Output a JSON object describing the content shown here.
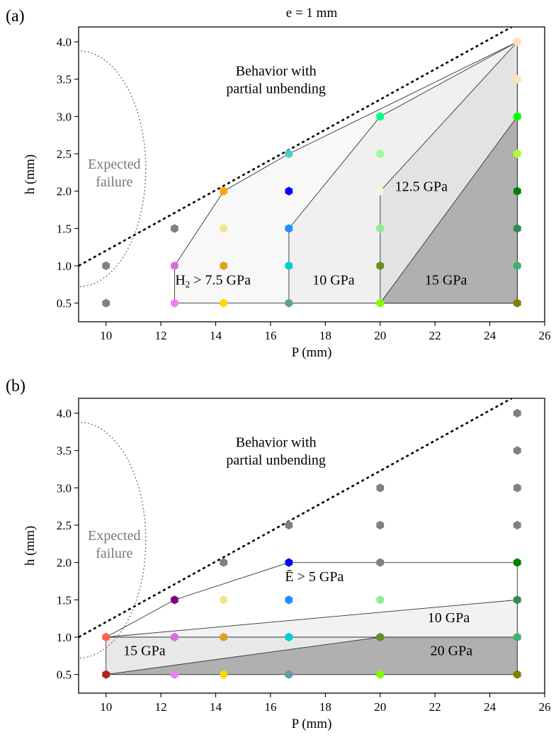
{
  "chart_data": [
    {
      "panel_label": "(a)",
      "type": "scatter",
      "title": "e = 1 mm",
      "xlabel": "P (mm)",
      "ylabel": "h (mm)",
      "xlim": [
        9,
        26
      ],
      "ylim": [
        0.25,
        4.2
      ],
      "xticks": [
        10,
        12,
        14,
        16,
        18,
        20,
        22,
        24,
        26
      ],
      "yticks": [
        0.5,
        1.0,
        1.5,
        2.0,
        2.5,
        3.0,
        3.5,
        4.0
      ],
      "xtick_labels": [
        "10",
        "12",
        "14",
        "16",
        "18",
        "20",
        "22",
        "24",
        "26"
      ],
      "ytick_labels": [
        "0.5",
        "1.0",
        "1.5",
        "2.0",
        "2.5",
        "3.0",
        "3.5",
        "4.0"
      ],
      "grid": false,
      "points": [
        {
          "x": 10,
          "y": 0.5,
          "color": "#808080"
        },
        {
          "x": 10,
          "y": 1.0,
          "color": "#808080"
        },
        {
          "x": 12.5,
          "y": 0.5,
          "color": "#ee82ee"
        },
        {
          "x": 12.5,
          "y": 1.0,
          "color": "#da70d6"
        },
        {
          "x": 12.5,
          "y": 1.5,
          "color": "#808080"
        },
        {
          "x": 14.29,
          "y": 0.5,
          "color": "#ffd700"
        },
        {
          "x": 14.29,
          "y": 1.0,
          "color": "#daa520"
        },
        {
          "x": 14.29,
          "y": 1.5,
          "color": "#f0e68c"
        },
        {
          "x": 14.29,
          "y": 2.0,
          "color": "#ffa500"
        },
        {
          "x": 16.67,
          "y": 0.5,
          "color": "#5f9ea0"
        },
        {
          "x": 16.67,
          "y": 1.0,
          "color": "#00ced1"
        },
        {
          "x": 16.67,
          "y": 1.5,
          "color": "#1e90ff"
        },
        {
          "x": 16.67,
          "y": 2.0,
          "color": "#0000ff"
        },
        {
          "x": 16.67,
          "y": 2.5,
          "color": "#48d1cc"
        },
        {
          "x": 20,
          "y": 0.5,
          "color": "#7fff00"
        },
        {
          "x": 20,
          "y": 1.0,
          "color": "#6b8e23"
        },
        {
          "x": 20,
          "y": 1.5,
          "color": "#90ee90"
        },
        {
          "x": 20,
          "y": 2.0,
          "color": "#f5f5dc"
        },
        {
          "x": 20,
          "y": 2.5,
          "color": "#98fb98"
        },
        {
          "x": 20,
          "y": 3.0,
          "color": "#00ff7f"
        },
        {
          "x": 25,
          "y": 0.5,
          "color": "#808000"
        },
        {
          "x": 25,
          "y": 1.0,
          "color": "#3cb371"
        },
        {
          "x": 25,
          "y": 1.5,
          "color": "#2e8b57"
        },
        {
          "x": 25,
          "y": 2.0,
          "color": "#008000"
        },
        {
          "x": 25,
          "y": 2.5,
          "color": "#adff2f"
        },
        {
          "x": 25,
          "y": 3.0,
          "color": "#00ff00"
        },
        {
          "x": 25,
          "y": 3.5,
          "color": "#ffe4b5"
        },
        {
          "x": 25,
          "y": 4.0,
          "color": "#ffdead"
        }
      ],
      "regions": [
        {
          "label": "H₂ > 7.5 GPa",
          "label_at": [
            13.9,
            0.75
          ],
          "fill": "#f8f8f8",
          "polygon": [
            [
              12.5,
              0.5
            ],
            [
              12.5,
              1.0
            ],
            [
              14.29,
              2.0
            ],
            [
              16.67,
              2.5
            ],
            [
              25,
              4.0
            ],
            [
              25,
              0.5
            ]
          ]
        },
        {
          "label": "10 GPa",
          "label_at": [
            18.3,
            0.75
          ],
          "fill": "#f0f0f0",
          "polygon": [
            [
              16.67,
              0.5
            ],
            [
              16.67,
              1.5
            ],
            [
              20,
              3.0
            ],
            [
              25,
              4.0
            ],
            [
              25,
              0.5
            ]
          ]
        },
        {
          "label": "12.5 GPa",
          "label_at": [
            21.5,
            2.0
          ],
          "fill": "#e3e3e3",
          "polygon": [
            [
              20,
              0.5
            ],
            [
              20,
              2.0
            ],
            [
              25,
              4.0
            ],
            [
              25,
              0.5
            ]
          ]
        },
        {
          "label": "15 GPa",
          "label_at": [
            22.4,
            0.75
          ],
          "fill": "#b0b0b0",
          "polygon": [
            [
              20,
              0.5
            ],
            [
              25,
              3.0
            ],
            [
              25,
              0.5
            ]
          ]
        }
      ],
      "boundary_line": {
        "label": "Behavior with\npartial unbending",
        "label_at": [
          16.2,
          3.55
        ],
        "from": [
          9,
          1.0
        ],
        "to": [
          24.8,
          4.2
        ]
      },
      "failure_curve": {
        "label": "Expected\nfailure",
        "label_at": [
          10.3,
          2.3
        ],
        "center": [
          9,
          2.3
        ],
        "rx": 2.45,
        "ry": 1.58
      }
    },
    {
      "panel_label": "(b)",
      "type": "scatter",
      "title": "",
      "xlabel": "P (mm)",
      "ylabel": "h (mm)",
      "xlim": [
        9,
        26
      ],
      "ylim": [
        0.25,
        4.2
      ],
      "xticks": [
        10,
        12,
        14,
        16,
        18,
        20,
        22,
        24,
        26
      ],
      "yticks": [
        0.5,
        1.0,
        1.5,
        2.0,
        2.5,
        3.0,
        3.5,
        4.0
      ],
      "xtick_labels": [
        "10",
        "12",
        "14",
        "16",
        "18",
        "20",
        "22",
        "24",
        "26"
      ],
      "ytick_labels": [
        "0.5",
        "1.0",
        "1.5",
        "2.0",
        "2.5",
        "3.0",
        "3.5",
        "4.0"
      ],
      "grid": false,
      "points": [
        {
          "x": 10,
          "y": 0.5,
          "color": "#b22222"
        },
        {
          "x": 10,
          "y": 1.0,
          "color": "#ff6347"
        },
        {
          "x": 12.5,
          "y": 0.5,
          "color": "#ee82ee"
        },
        {
          "x": 12.5,
          "y": 1.0,
          "color": "#da70d6"
        },
        {
          "x": 12.5,
          "y": 1.5,
          "color": "#800080"
        },
        {
          "x": 14.29,
          "y": 0.5,
          "color": "#ffd700"
        },
        {
          "x": 14.29,
          "y": 1.0,
          "color": "#daa520"
        },
        {
          "x": 14.29,
          "y": 1.5,
          "color": "#f0e68c"
        },
        {
          "x": 14.29,
          "y": 2.0,
          "color": "#808080"
        },
        {
          "x": 16.67,
          "y": 0.5,
          "color": "#5f9ea0"
        },
        {
          "x": 16.67,
          "y": 1.0,
          "color": "#00ced1"
        },
        {
          "x": 16.67,
          "y": 1.5,
          "color": "#1e90ff"
        },
        {
          "x": 16.67,
          "y": 2.0,
          "color": "#0000ff"
        },
        {
          "x": 16.67,
          "y": 2.5,
          "color": "#808080"
        },
        {
          "x": 20,
          "y": 0.5,
          "color": "#7fff00"
        },
        {
          "x": 20,
          "y": 1.0,
          "color": "#6b8e23"
        },
        {
          "x": 20,
          "y": 1.5,
          "color": "#90ee90"
        },
        {
          "x": 20,
          "y": 2.0,
          "color": "#808080"
        },
        {
          "x": 20,
          "y": 2.5,
          "color": "#808080"
        },
        {
          "x": 20,
          "y": 3.0,
          "color": "#808080"
        },
        {
          "x": 25,
          "y": 0.5,
          "color": "#808000"
        },
        {
          "x": 25,
          "y": 1.0,
          "color": "#3cb371"
        },
        {
          "x": 25,
          "y": 1.5,
          "color": "#2e8b57"
        },
        {
          "x": 25,
          "y": 2.0,
          "color": "#008000"
        },
        {
          "x": 25,
          "y": 2.5,
          "color": "#808080"
        },
        {
          "x": 25,
          "y": 3.0,
          "color": "#808080"
        },
        {
          "x": 25,
          "y": 3.5,
          "color": "#808080"
        },
        {
          "x": 25,
          "y": 4.0,
          "color": "#808080"
        }
      ],
      "regions": [
        {
          "label": "Ē > 5 GPa",
          "label_at": [
            17.6,
            1.75
          ],
          "fill": "#ffffff",
          "polygon": [
            [
              10,
              1.0
            ],
            [
              12.5,
              1.5
            ],
            [
              16.67,
              2.0
            ],
            [
              25,
              2.0
            ],
            [
              25,
              1.0
            ]
          ]
        },
        {
          "label": "10 GPa",
          "label_at": [
            22.5,
            1.2
          ],
          "fill": "#f2f2f2",
          "polygon": [
            [
              10,
              1.0
            ],
            [
              25,
              1.5
            ],
            [
              25,
              1.0
            ]
          ]
        },
        {
          "label": "15 GPa",
          "label_at": [
            11.4,
            0.76
          ],
          "fill": "#e8e8e8",
          "polygon": [
            [
              10,
              0.5
            ],
            [
              10,
              1.0
            ],
            [
              25,
              1.0
            ],
            [
              25,
              0.5
            ]
          ]
        },
        {
          "label": "20 GPa",
          "label_at": [
            22.6,
            0.76
          ],
          "fill": "#b0b0b0",
          "polygon": [
            [
              10,
              0.5
            ],
            [
              20,
              1.0
            ],
            [
              25,
              1.0
            ],
            [
              25,
              0.5
            ]
          ]
        }
      ],
      "boundary_line": {
        "label": "Behavior with\npartial unbending",
        "label_at": [
          16.2,
          3.55
        ],
        "from": [
          9,
          1.0
        ],
        "to": [
          24.8,
          4.2
        ]
      },
      "failure_curve": {
        "label": "Expected\nfailure",
        "label_at": [
          10.3,
          2.3
        ],
        "center": [
          9,
          2.3
        ],
        "rx": 2.45,
        "ry": 1.58
      }
    }
  ]
}
